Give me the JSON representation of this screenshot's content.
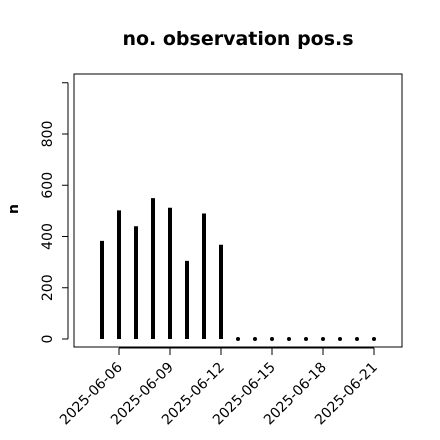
{
  "chart_data": {
    "type": "bar",
    "title": "no. observation pos.s",
    "xlabel": "",
    "ylabel": "n",
    "ylim": [
      0,
      1000
    ],
    "yticks": [
      0,
      200,
      400,
      600,
      800
    ],
    "x": [
      "2025-06-05",
      "2025-06-06",
      "2025-06-07",
      "2025-06-08",
      "2025-06-09",
      "2025-06-10",
      "2025-06-11",
      "2025-06-12",
      "2025-06-13",
      "2025-06-14",
      "2025-06-15",
      "2025-06-16",
      "2025-06-17",
      "2025-06-18",
      "2025-06-19",
      "2025-06-20",
      "2025-06-21"
    ],
    "values": [
      383,
      502,
      440,
      550,
      512,
      305,
      490,
      368,
      0,
      0,
      0,
      0,
      0,
      0,
      0,
      0,
      0
    ],
    "xtick_labels": [
      {
        "label": "2025-06-06",
        "color": "#000000"
      },
      {
        "label": "2025-06-09",
        "color": "#000000"
      },
      {
        "label": "2025-06-12",
        "color": "#228B22"
      },
      {
        "label": "2025-06-15",
        "color": "#000000"
      },
      {
        "label": "2025-06-18",
        "color": "#000000"
      },
      {
        "label": "2025-06-21",
        "color": "#000000"
      }
    ],
    "bar_color": "#000000",
    "grid": false
  }
}
